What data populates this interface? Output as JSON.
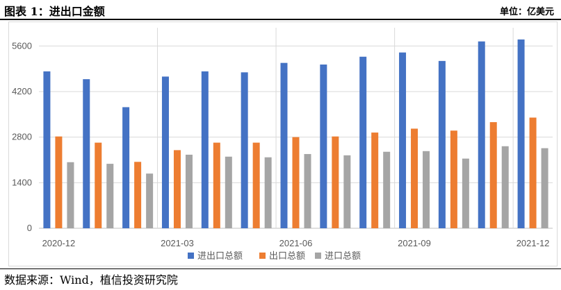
{
  "header": {
    "title": "图表 1：进出口金额",
    "unit": "单位：亿美元"
  },
  "source": "数据来源：Wind，植信投资研究院",
  "chart_data": {
    "type": "bar",
    "categories": [
      "2020-12",
      "2021-01",
      "2021-02",
      "2021-03",
      "2021-04",
      "2021-05",
      "2021-06",
      "2021-07",
      "2021-08",
      "2021-09",
      "2021-10",
      "2021-11",
      "2021-12"
    ],
    "x_tick_labels": [
      "2020-12",
      "",
      "",
      "2021-03",
      "",
      "",
      "2021-06",
      "",
      "",
      "2021-09",
      "",
      "",
      "2021-12"
    ],
    "series": [
      {
        "name": "进出口总额",
        "color": "#4472C4",
        "values": [
          4820,
          4580,
          3720,
          4660,
          4820,
          4790,
          5080,
          5030,
          5270,
          5400,
          5140,
          5740,
          5800
        ]
      },
      {
        "name": "出口总额",
        "color": "#ED7D31",
        "values": [
          2820,
          2630,
          2040,
          2400,
          2630,
          2630,
          2800,
          2820,
          2940,
          3060,
          3000,
          3260,
          3400
        ]
      },
      {
        "name": "进口总额",
        "color": "#A5A5A5",
        "values": [
          2030,
          1980,
          1680,
          2260,
          2200,
          2180,
          2280,
          2240,
          2350,
          2370,
          2140,
          2520,
          2460
        ]
      }
    ],
    "yticks": [
      0,
      1400,
      2800,
      4200,
      5600
    ],
    "ylim": [
      0,
      6160
    ],
    "grid": true,
    "legend_position": "bottom"
  }
}
